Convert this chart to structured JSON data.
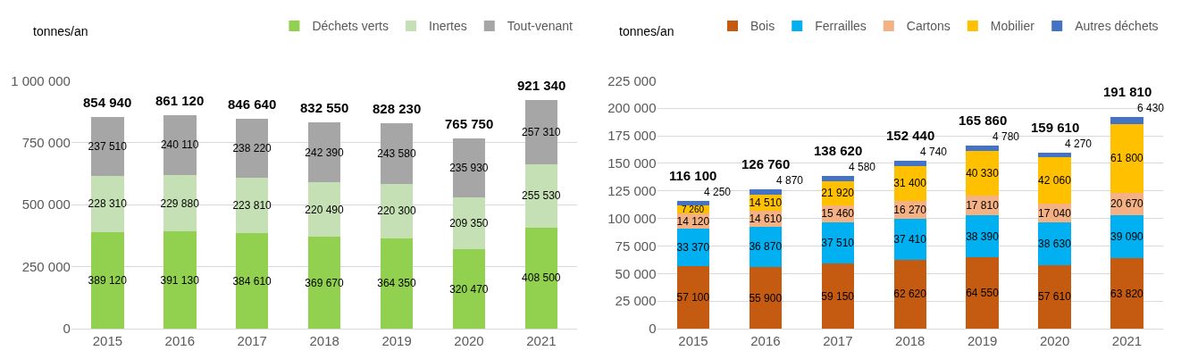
{
  "chart_data": [
    {
      "type": "bar",
      "stacked": true,
      "ylabel": "tonnes/an",
      "categories": [
        "2015",
        "2016",
        "2017",
        "2018",
        "2019",
        "2020",
        "2021"
      ],
      "series": [
        {
          "name": "Déchets verts",
          "color": "#92d050",
          "values": [
            389120,
            391130,
            384610,
            369670,
            364350,
            320470,
            408500
          ],
          "value_labels": [
            "389 120",
            "391 130",
            "384 610",
            "369 670",
            "364 350",
            "320 470",
            "408 500"
          ]
        },
        {
          "name": "Inertes",
          "color": "#c5e0b4",
          "values": [
            228310,
            229880,
            223810,
            220490,
            220300,
            209350,
            255530
          ],
          "value_labels": [
            "228 310",
            "229 880",
            "223 810",
            "220 490",
            "220 300",
            "209 350",
            "255 530"
          ]
        },
        {
          "name": "Tout-venant",
          "color": "#a6a6a6",
          "values": [
            237510,
            240110,
            238220,
            242390,
            243580,
            235930,
            257310
          ],
          "value_labels": [
            "237 510",
            "240 110",
            "238 220",
            "242 390",
            "243 580",
            "235 930",
            "257 310"
          ]
        }
      ],
      "totals": [
        "854 940",
        "861 120",
        "846 640",
        "832 550",
        "828 230",
        "765 750",
        "921 340"
      ],
      "ylim": [
        0,
        1000000
      ],
      "yticks": [
        {
          "value": 0,
          "label": "0"
        },
        {
          "value": 250000,
          "label": "250 000"
        },
        {
          "value": 500000,
          "label": "500 000"
        },
        {
          "value": 750000,
          "label": "750 000"
        },
        {
          "value": 1000000,
          "label": "1 000 000"
        }
      ],
      "grid": "y",
      "legend": "top right"
    },
    {
      "type": "bar",
      "stacked": true,
      "ylabel": "tonnes/an",
      "categories": [
        "2015",
        "2016",
        "2017",
        "2018",
        "2019",
        "2020",
        "2021"
      ],
      "series": [
        {
          "name": "Bois",
          "color": "#c55a11",
          "values": [
            57100,
            55900,
            59150,
            62620,
            64550,
            57610,
            63820
          ],
          "value_labels": [
            "57 100",
            "55 900",
            "59 150",
            "62 620",
            "64 550",
            "57 610",
            "63 820"
          ]
        },
        {
          "name": "Ferrailles",
          "color": "#00b0f0",
          "values": [
            33370,
            36870,
            37510,
            37410,
            38390,
            38630,
            39090
          ],
          "value_labels": [
            "33 370",
            "36 870",
            "37 510",
            "37 410",
            "38 390",
            "38 630",
            "39 090"
          ]
        },
        {
          "name": "Cartons",
          "color": "#f4b183",
          "values": [
            14120,
            14610,
            15460,
            16270,
            17810,
            17040,
            20670
          ],
          "value_labels": [
            "14 120",
            "14 610",
            "15 460",
            "16 270",
            "17 810",
            "17 040",
            "20 670"
          ]
        },
        {
          "name": "Mobilier",
          "color": "#ffc000",
          "values": [
            7260,
            14510,
            21920,
            31400,
            40330,
            42060,
            61800
          ],
          "value_labels": [
            "7 260",
            "14 510",
            "21 920",
            "31 400",
            "40 330",
            "42 060",
            "61 800"
          ]
        },
        {
          "name": "Autres déchets",
          "color": "#4472c4",
          "values": [
            4250,
            4870,
            4580,
            4740,
            4780,
            4270,
            6430
          ],
          "value_labels": [
            "4 250",
            "4 870",
            "4 580",
            "4 740",
            "4 780",
            "4 270",
            "6 430"
          ]
        }
      ],
      "totals": [
        "116 100",
        "126 760",
        "138 620",
        "152 440",
        "165 860",
        "159 610",
        "191 810"
      ],
      "ylim": [
        0,
        225000
      ],
      "yticks": [
        {
          "value": 0,
          "label": "0"
        },
        {
          "value": 25000,
          "label": "25 000"
        },
        {
          "value": 50000,
          "label": "50 000"
        },
        {
          "value": 75000,
          "label": "75 000"
        },
        {
          "value": 100000,
          "label": "100 000"
        },
        {
          "value": 125000,
          "label": "125 000"
        },
        {
          "value": 150000,
          "label": "150 000"
        },
        {
          "value": 175000,
          "label": "175 000"
        },
        {
          "value": 200000,
          "label": "200 000"
        },
        {
          "value": 225000,
          "label": "225 000"
        }
      ],
      "grid": "y",
      "legend": "top right"
    }
  ]
}
